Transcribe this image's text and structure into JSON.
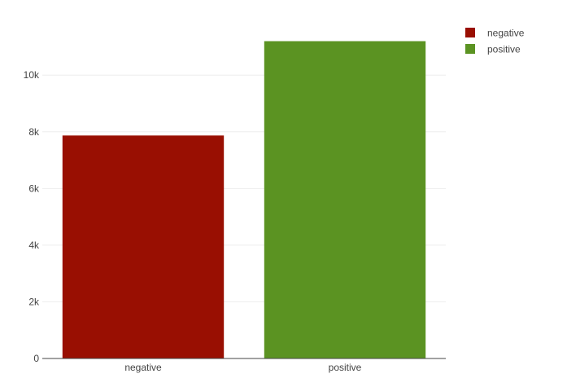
{
  "chart_data": {
    "type": "bar",
    "categories": [
      "negative",
      "positive"
    ],
    "values": [
      7870,
      11200
    ],
    "colors": [
      "#990f02",
      "#5b9322"
    ],
    "title": "",
    "xlabel": "",
    "ylabel": "",
    "ylim": [
      0,
      11790
    ],
    "yticks": [
      0,
      2000,
      4000,
      6000,
      8000,
      10000
    ],
    "ytick_labels": [
      "0",
      "2k",
      "4k",
      "6k",
      "8k",
      "10k"
    ],
    "grid": true,
    "legend": {
      "placement": "top-right",
      "entries": [
        {
          "label": "negative",
          "color": "#990f02"
        },
        {
          "label": "positive",
          "color": "#5b9322"
        }
      ]
    }
  }
}
